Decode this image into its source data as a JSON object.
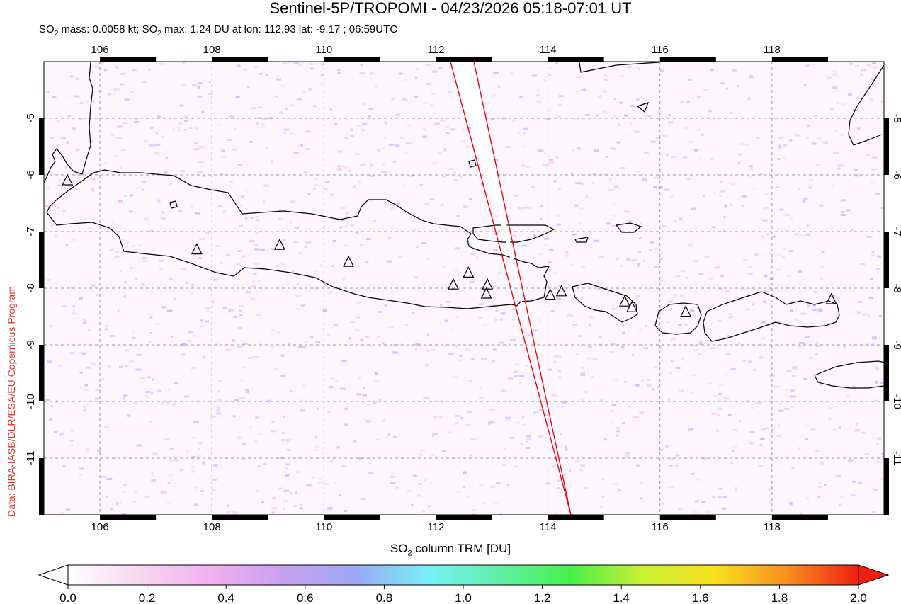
{
  "title": "Sentinel-5P/TROPOMI - 04/23/2026 05:18-07:01 UT",
  "subtitle": {
    "mass_prefix": "SO",
    "mass_sub": "2",
    "mass_text": " mass: 0.0058 kt; SO",
    "max_sub": "2",
    "max_text": " max: 1.24 DU at lon: 112.93 lat: -9.17 ; 06:59UTC"
  },
  "credit": "Data: BIRA-IASB/DLR/ESA/EU Copernicus Program",
  "colorbar": {
    "label_prefix": "SO",
    "label_sub": "2",
    "label_text": " column TRM [DU]",
    "ticks": [
      "0.0",
      "0.2",
      "0.4",
      "0.6",
      "0.8",
      "1.0",
      "1.2",
      "1.4",
      "1.6",
      "1.8",
      "2.0"
    ],
    "colors": [
      "#ffffff",
      "#f8d6f0",
      "#f0b0f0",
      "#c8a0f0",
      "#9aa8f5",
      "#78f0f8",
      "#60f0a8",
      "#48f048",
      "#c8f030",
      "#f8e020",
      "#f89020",
      "#f02010"
    ]
  },
  "map": {
    "lon_ticks": [
      "106",
      "108",
      "110",
      "112",
      "114",
      "116",
      "118"
    ],
    "lat_ticks": [
      "-5",
      "-6",
      "-7",
      "-8",
      "-9",
      "-10",
      "-11"
    ],
    "lon_range": [
      105.0,
      120.0
    ],
    "lat_range": [
      -12.0,
      -4.0
    ],
    "grid": "dashed",
    "colors": {
      "land_outline": "#000000",
      "swath_edge": "#e00000",
      "grid": "#999999"
    },
    "volcano_marker": "triangle-icon",
    "volcanoes": [
      {
        "lon": 105.42,
        "lat": -6.1
      },
      {
        "lon": 107.73,
        "lat": -7.32
      },
      {
        "lon": 109.21,
        "lat": -7.24
      },
      {
        "lon": 110.44,
        "lat": -7.54
      },
      {
        "lon": 112.31,
        "lat": -7.94
      },
      {
        "lon": 112.58,
        "lat": -7.73
      },
      {
        "lon": 112.92,
        "lat": -7.94
      },
      {
        "lon": 112.9,
        "lat": -8.1
      },
      {
        "lon": 114.04,
        "lat": -8.12
      },
      {
        "lon": 114.24,
        "lat": -8.06
      },
      {
        "lon": 115.37,
        "lat": -8.24
      },
      {
        "lon": 115.5,
        "lat": -8.34
      },
      {
        "lon": 116.46,
        "lat": -8.42
      },
      {
        "lon": 119.06,
        "lat": -8.2
      }
    ]
  }
}
